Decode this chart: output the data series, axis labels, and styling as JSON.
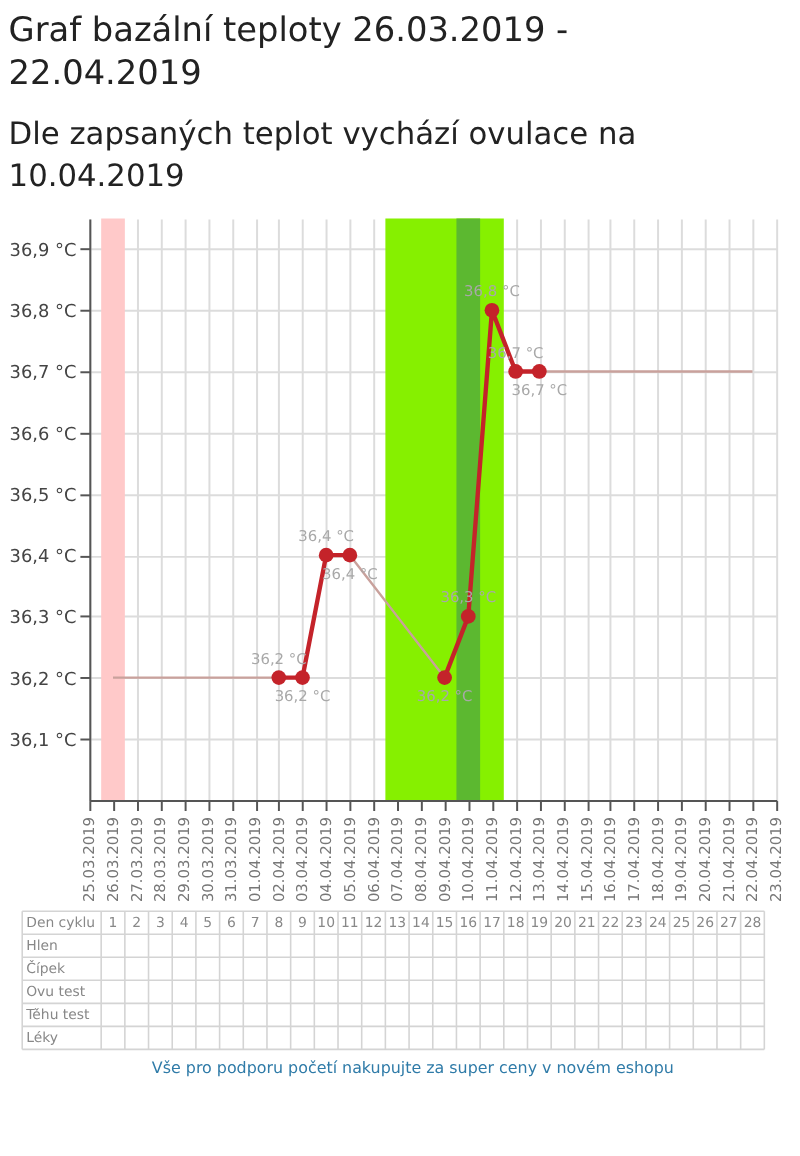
{
  "chart_data": {
    "type": "line",
    "title": "Graf bazální teploty 26.03.2019 - 22.04.2019",
    "subtitle": "Dle zapsaných teplot vychází ovulace na 10.04.2019",
    "series": [
      {
        "type": "line",
        "color": "#c9a19c",
        "marker": "none",
        "x": [
          "2019-03-26",
          "2019-03-27",
          "2019-03-28",
          "2019-03-29",
          "2019-03-30",
          "2019-03-31",
          "2019-04-01",
          "2019-04-02",
          "2019-04-03",
          "2019-04-04",
          "2019-04-05",
          "2019-04-06",
          "2019-04-07",
          "2019-04-08",
          "2019-04-09",
          "2019-04-10",
          "2019-04-11",
          "2019-04-12",
          "2019-04-13",
          "2019-04-14",
          "2019-04-15",
          "2019-04-16",
          "2019-04-17",
          "2019-04-18",
          "2019-04-19",
          "2019-04-20",
          "2019-04-21",
          "2019-04-22"
        ],
        "values": [
          36.2,
          36.2,
          36.2,
          36.2,
          36.2,
          36.2,
          36.2,
          36.2,
          36.2,
          36.4,
          36.4,
          36.35,
          36.3,
          36.25,
          36.2,
          36.3,
          36.8,
          36.7,
          36.7,
          36.7,
          36.7,
          36.7,
          36.7,
          36.7,
          36.7,
          36.7,
          36.7,
          36.7
        ]
      },
      {
        "type": "line",
        "color": "#c4232a",
        "marker": "circle",
        "x": [
          "2019-04-02",
          "2019-04-03",
          "2019-04-04",
          "2019-04-05",
          "2019-04-06",
          "2019-04-07",
          "2019-04-08",
          "2019-04-09",
          "2019-04-10",
          "2019-04-11",
          "2019-04-12",
          "2019-04-13"
        ],
        "values": [
          36.2,
          36.2,
          36.4,
          36.4,
          null,
          null,
          null,
          36.2,
          36.3,
          36.8,
          36.7,
          36.7
        ],
        "value_labels": [
          "36,2 °C",
          "36,2 °C",
          "36,4 °C",
          "36,4 °C",
          null,
          null,
          null,
          "36,2 °C",
          "36,3 °C",
          "36,8 °C",
          "36,7 °C",
          "36,7 °C"
        ]
      }
    ],
    "xlim": [
      "2019-03-25",
      "2019-04-23"
    ],
    "xticks": [
      {
        "value": "2019-03-25",
        "label": "25.03.2019"
      },
      {
        "value": "2019-03-26",
        "label": "26.03.2019"
      },
      {
        "value": "2019-03-27",
        "label": "27.03.2019"
      },
      {
        "value": "2019-03-28",
        "label": "28.03.2019"
      },
      {
        "value": "2019-03-29",
        "label": "29.03.2019"
      },
      {
        "value": "2019-03-30",
        "label": "30.03.2019"
      },
      {
        "value": "2019-03-31",
        "label": "31.03.2019"
      },
      {
        "value": "2019-04-01",
        "label": "01.04.2019"
      },
      {
        "value": "2019-04-02",
        "label": "02.04.2019"
      },
      {
        "value": "2019-04-03",
        "label": "03.04.2019"
      },
      {
        "value": "2019-04-04",
        "label": "04.04.2019"
      },
      {
        "value": "2019-04-05",
        "label": "05.04.2019"
      },
      {
        "value": "2019-04-06",
        "label": "06.04.2019"
      },
      {
        "value": "2019-04-07",
        "label": "07.04.2019"
      },
      {
        "value": "2019-04-08",
        "label": "08.04.2019"
      },
      {
        "value": "2019-04-09",
        "label": "09.04.2019"
      },
      {
        "value": "2019-04-10",
        "label": "10.04.2019"
      },
      {
        "value": "2019-04-11",
        "label": "11.04.2019"
      },
      {
        "value": "2019-04-12",
        "label": "12.04.2019"
      },
      {
        "value": "2019-04-13",
        "label": "13.04.2019"
      },
      {
        "value": "2019-04-14",
        "label": "14.04.2019"
      },
      {
        "value": "2019-04-15",
        "label": "15.04.2019"
      },
      {
        "value": "2019-04-16",
        "label": "16.04.2019"
      },
      {
        "value": "2019-04-17",
        "label": "17.04.2019"
      },
      {
        "value": "2019-04-18",
        "label": "18.04.2019"
      },
      {
        "value": "2019-04-19",
        "label": "19.04.2019"
      },
      {
        "value": "2019-04-20",
        "label": "20.04.2019"
      },
      {
        "value": "2019-04-21",
        "label": "21.04.2019"
      },
      {
        "value": "2019-04-22",
        "label": "22.04.2019"
      },
      {
        "value": "2019-04-23",
        "label": "23.04.2019"
      }
    ],
    "ylim": [
      36.0,
      36.95
    ],
    "yticks": [
      {
        "value": 36.1,
        "label": "36,1 °C"
      },
      {
        "value": 36.2,
        "label": "36,2 °C"
      },
      {
        "value": 36.3,
        "label": "36,3 °C"
      },
      {
        "value": 36.4,
        "label": "36,4 °C"
      },
      {
        "value": 36.5,
        "label": "36,5 °C"
      },
      {
        "value": 36.6,
        "label": "36,6 °C"
      },
      {
        "value": 36.7,
        "label": "36,7 °C"
      },
      {
        "value": 36.8,
        "label": "36,8 °C"
      },
      {
        "value": 36.9,
        "label": "36,9 °C"
      }
    ],
    "x2label": "Den cyklu",
    "x2lim": [
      "2019-03-22T04:00",
      "2019-04-22T12:00"
    ],
    "x2ticks": [
      {
        "value": "2019-03-26",
        "label": "1"
      },
      {
        "value": "2019-03-27",
        "label": "2"
      },
      {
        "value": "2019-03-28",
        "label": "3"
      },
      {
        "value": "2019-03-29",
        "label": "4"
      },
      {
        "value": "2019-03-30",
        "label": "5"
      },
      {
        "value": "2019-03-31",
        "label": "6"
      },
      {
        "value": "2019-04-01",
        "label": "7"
      },
      {
        "value": "2019-04-02",
        "label": "8"
      },
      {
        "value": "2019-04-03",
        "label": "9"
      },
      {
        "value": "2019-04-04",
        "label": "10"
      },
      {
        "value": "2019-04-05",
        "label": "11"
      },
      {
        "value": "2019-04-06",
        "label": "12"
      },
      {
        "value": "2019-04-07",
        "label": "13"
      },
      {
        "value": "2019-04-08",
        "label": "14"
      },
      {
        "value": "2019-04-09",
        "label": "15"
      },
      {
        "value": "2019-04-10",
        "label": "16"
      },
      {
        "value": "2019-04-11",
        "label": "17"
      },
      {
        "value": "2019-04-12",
        "label": "18"
      },
      {
        "value": "2019-04-13",
        "label": "19"
      },
      {
        "value": "2019-04-14",
        "label": "20"
      },
      {
        "value": "2019-04-15",
        "label": "21"
      },
      {
        "value": "2019-04-16",
        "label": "22"
      },
      {
        "value": "2019-04-17",
        "label": "23"
      },
      {
        "value": "2019-04-18",
        "label": "24"
      },
      {
        "value": "2019-04-19",
        "label": "25"
      },
      {
        "value": "2019-04-20",
        "label": "26"
      },
      {
        "value": "2019-04-21",
        "label": "27"
      },
      {
        "value": "2019-04-22",
        "label": "28"
      }
    ],
    "bands": [
      {
        "axis": "x",
        "from": "2019-03-25T12:00",
        "to": "2019-03-26T12:00",
        "color": "#ffc9c9"
      },
      {
        "axis": "x",
        "from": "2019-04-06T12:00",
        "to": "2019-04-11T12:00",
        "color": "#86f000"
      },
      {
        "axis": "x",
        "from": "2019-04-09T12:00",
        "to": "2019-04-10T12:00",
        "color": "#5cb830"
      }
    ],
    "annotations": [
      "Hlen",
      "Čípek",
      "Ovu test",
      "Těhu test",
      "Léky",
      "Vše pro podporu početí nakupujte za super ceny v novém eshopu"
    ],
    "grid": true
  }
}
